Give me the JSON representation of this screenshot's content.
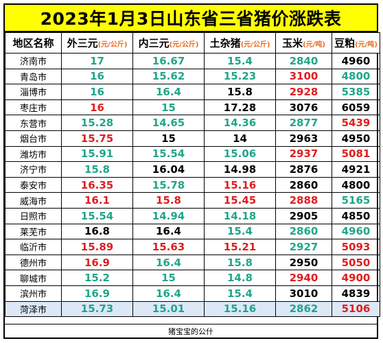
{
  "title": "2023年1月3日山东省三省猪价涨跌表",
  "headers": [
    {
      "label": "地区名称",
      "unit": ""
    },
    {
      "label": "外三元",
      "unit": "(元/公斤)"
    },
    {
      "label": "内三元",
      "unit": "(元/公斤)"
    },
    {
      "label": "土杂猪",
      "unit": "(元/公斤)"
    },
    {
      "label": "玉米",
      "unit": "(元/吨)"
    },
    {
      "label": "豆粕",
      "unit": "(元/吨)"
    }
  ],
  "colors": {
    "up": "#e01e1e",
    "down": "#1fa68a",
    "flat": "#000000",
    "header_bg": "#ffff00"
  },
  "rows": [
    {
      "region": "济南市",
      "cells": [
        {
          "v": "17",
          "c": "down"
        },
        {
          "v": "16.67",
          "c": "down"
        },
        {
          "v": "15.4",
          "c": "down"
        },
        {
          "v": "2840",
          "c": "down"
        },
        {
          "v": "4960",
          "c": "flat"
        }
      ]
    },
    {
      "region": "青岛市",
      "cells": [
        {
          "v": "16",
          "c": "down"
        },
        {
          "v": "15.62",
          "c": "down"
        },
        {
          "v": "15.23",
          "c": "down"
        },
        {
          "v": "3100",
          "c": "up"
        },
        {
          "v": "4800",
          "c": "down"
        }
      ]
    },
    {
      "region": "淄博市",
      "cells": [
        {
          "v": "16",
          "c": "down"
        },
        {
          "v": "16.4",
          "c": "down"
        },
        {
          "v": "15.8",
          "c": "flat"
        },
        {
          "v": "2928",
          "c": "up"
        },
        {
          "v": "5385",
          "c": "down"
        }
      ]
    },
    {
      "region": "枣庄市",
      "cells": [
        {
          "v": "16",
          "c": "up"
        },
        {
          "v": "15",
          "c": "down"
        },
        {
          "v": "17.28",
          "c": "flat"
        },
        {
          "v": "3076",
          "c": "flat"
        },
        {
          "v": "6059",
          "c": "flat"
        }
      ]
    },
    {
      "region": "东营市",
      "cells": [
        {
          "v": "15.28",
          "c": "down"
        },
        {
          "v": "14.65",
          "c": "down"
        },
        {
          "v": "14.36",
          "c": "down"
        },
        {
          "v": "2877",
          "c": "down"
        },
        {
          "v": "5439",
          "c": "up"
        }
      ]
    },
    {
      "region": "烟台市",
      "cells": [
        {
          "v": "15.75",
          "c": "up"
        },
        {
          "v": "15",
          "c": "flat"
        },
        {
          "v": "14",
          "c": "flat"
        },
        {
          "v": "2963",
          "c": "flat"
        },
        {
          "v": "4950",
          "c": "flat"
        }
      ]
    },
    {
      "region": "潍坊市",
      "cells": [
        {
          "v": "15.91",
          "c": "down"
        },
        {
          "v": "15.54",
          "c": "down"
        },
        {
          "v": "15.06",
          "c": "down"
        },
        {
          "v": "2937",
          "c": "up"
        },
        {
          "v": "5081",
          "c": "up"
        }
      ]
    },
    {
      "region": "济宁市",
      "cells": [
        {
          "v": "15.8",
          "c": "down"
        },
        {
          "v": "16.04",
          "c": "flat"
        },
        {
          "v": "14.98",
          "c": "flat"
        },
        {
          "v": "2876",
          "c": "flat"
        },
        {
          "v": "4921",
          "c": "flat"
        }
      ]
    },
    {
      "region": "泰安市",
      "cells": [
        {
          "v": "16.35",
          "c": "up"
        },
        {
          "v": "15.78",
          "c": "down"
        },
        {
          "v": "15.16",
          "c": "up"
        },
        {
          "v": "2860",
          "c": "flat"
        },
        {
          "v": "4800",
          "c": "flat"
        }
      ]
    },
    {
      "region": "威海市",
      "cells": [
        {
          "v": "16.1",
          "c": "up"
        },
        {
          "v": "15.8",
          "c": "up"
        },
        {
          "v": "15.45",
          "c": "up"
        },
        {
          "v": "2888",
          "c": "up"
        },
        {
          "v": "5165",
          "c": "down"
        }
      ]
    },
    {
      "region": "日照市",
      "cells": [
        {
          "v": "15.54",
          "c": "down"
        },
        {
          "v": "14.94",
          "c": "down"
        },
        {
          "v": "14.18",
          "c": "down"
        },
        {
          "v": "2905",
          "c": "flat"
        },
        {
          "v": "4850",
          "c": "flat"
        }
      ]
    },
    {
      "region": "莱芜市",
      "cells": [
        {
          "v": "16.8",
          "c": "flat"
        },
        {
          "v": "16.4",
          "c": "flat"
        },
        {
          "v": "15.4",
          "c": "down"
        },
        {
          "v": "2860",
          "c": "down"
        },
        {
          "v": "4960",
          "c": "down"
        }
      ]
    },
    {
      "region": "临沂市",
      "cells": [
        {
          "v": "15.89",
          "c": "up"
        },
        {
          "v": "15.63",
          "c": "up"
        },
        {
          "v": "15.21",
          "c": "up"
        },
        {
          "v": "2927",
          "c": "down"
        },
        {
          "v": "5093",
          "c": "up"
        }
      ]
    },
    {
      "region": "德州市",
      "cells": [
        {
          "v": "16.9",
          "c": "up"
        },
        {
          "v": "16.4",
          "c": "down"
        },
        {
          "v": "15.8",
          "c": "down"
        },
        {
          "v": "2950",
          "c": "flat"
        },
        {
          "v": "5050",
          "c": "up"
        }
      ]
    },
    {
      "region": "聊城市",
      "cells": [
        {
          "v": "15.2",
          "c": "down"
        },
        {
          "v": "15",
          "c": "down"
        },
        {
          "v": "14.8",
          "c": "down"
        },
        {
          "v": "2940",
          "c": "up"
        },
        {
          "v": "4900",
          "c": "up"
        }
      ]
    },
    {
      "region": "滨州市",
      "cells": [
        {
          "v": "16.9",
          "c": "down"
        },
        {
          "v": "16.4",
          "c": "down"
        },
        {
          "v": "15.4",
          "c": "down"
        },
        {
          "v": "3010",
          "c": "flat"
        },
        {
          "v": "4839",
          "c": "flat"
        }
      ]
    },
    {
      "region": "菏泽市",
      "cells": [
        {
          "v": "15.73",
          "c": "down"
        },
        {
          "v": "15.01",
          "c": "down"
        },
        {
          "v": "15.16",
          "c": "down"
        },
        {
          "v": "2862",
          "c": "down"
        },
        {
          "v": "5106",
          "c": "up"
        }
      ]
    }
  ],
  "footer": "猪宝宝的公什"
}
